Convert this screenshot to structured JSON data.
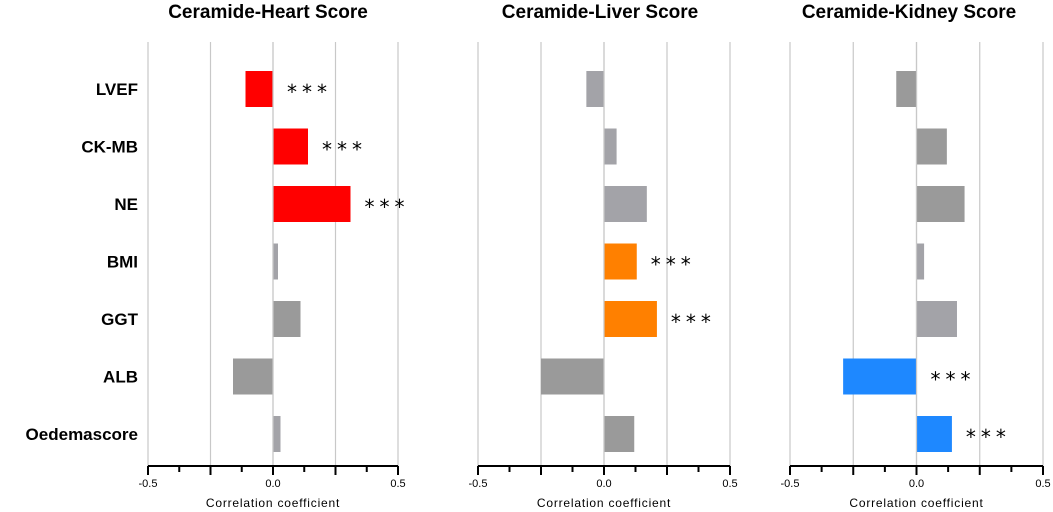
{
  "chart_data": [
    {
      "type": "bar",
      "orientation": "horizontal",
      "title": "Ceramide-Heart Score",
      "xlabel": "Correlation coefficient",
      "ylabel": "",
      "xlim": [
        -0.5,
        0.5
      ],
      "xticks": [
        "-0.5",
        "0.0",
        "0.5"
      ],
      "grid": true,
      "categories": [
        "LVEF",
        "CK-MB",
        "NE",
        "BMI",
        "GGT",
        "ALB",
        "Oedemascore"
      ],
      "values": [
        -0.11,
        0.14,
        0.31,
        0.02,
        0.11,
        -0.16,
        0.03
      ],
      "significance": [
        "***",
        "***",
        "***",
        "",
        "",
        "",
        ""
      ],
      "bar_colors": [
        "#ff0000",
        "#ff0000",
        "#ff0000",
        "#a3a3a8",
        "#9a9a9a",
        "#9a9a9a",
        "#a3a3a8"
      ]
    },
    {
      "type": "bar",
      "orientation": "horizontal",
      "title": "Ceramide-Liver Score",
      "xlabel": "Correlation coefficient",
      "ylabel": "",
      "xlim": [
        -0.5,
        0.5
      ],
      "xticks": [
        "-0.5",
        "0.0",
        "0.5"
      ],
      "grid": true,
      "categories": [
        "LVEF",
        "CK-MB",
        "NE",
        "BMI",
        "GGT",
        "ALB",
        "Oedemascore"
      ],
      "values": [
        -0.07,
        0.05,
        0.17,
        0.13,
        0.21,
        -0.25,
        0.12
      ],
      "significance": [
        "",
        "",
        "",
        "***",
        "***",
        "",
        ""
      ],
      "bar_colors": [
        "#a3a3a8",
        "#a3a3a8",
        "#a3a3a8",
        "#ff8000",
        "#ff8000",
        "#9a9a9a",
        "#9a9a9a"
      ]
    },
    {
      "type": "bar",
      "orientation": "horizontal",
      "title": "Ceramide-Kidney Score",
      "xlabel": "Correlation coefficient",
      "ylabel": "",
      "xlim": [
        -0.5,
        0.5
      ],
      "xticks": [
        "-0.5",
        "0.0",
        "0.5"
      ],
      "grid": true,
      "categories": [
        "LVEF",
        "CK-MB",
        "NE",
        "BMI",
        "GGT",
        "ALB",
        "Oedemascore"
      ],
      "values": [
        -0.08,
        0.12,
        0.19,
        0.03,
        0.16,
        -0.29,
        0.14
      ],
      "significance": [
        "",
        "",
        "",
        "",
        "",
        "***",
        "***"
      ],
      "bar_colors": [
        "#9a9a9a",
        "#9a9a9a",
        "#9a9a9a",
        "#a3a3a8",
        "#a3a3a8",
        "#1e88ff",
        "#1e88ff"
      ]
    }
  ]
}
